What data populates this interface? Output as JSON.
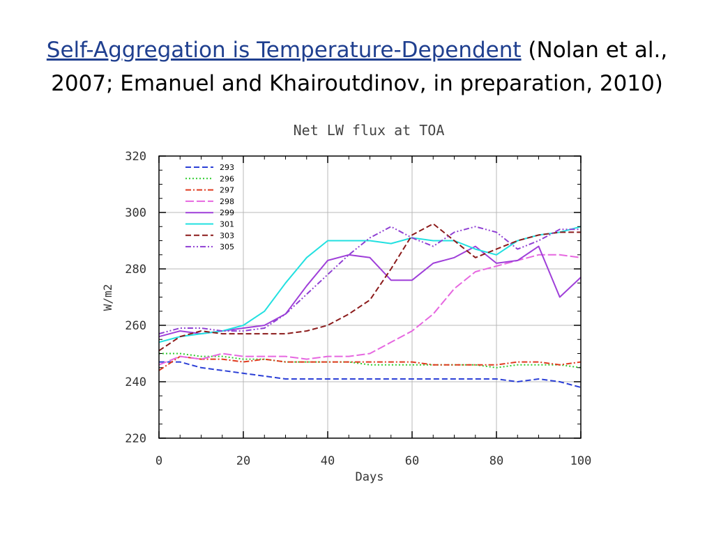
{
  "slide": {
    "title_emph": "Self-Aggregation is Temperature-Dependent",
    "title_rest": "(Nolan et al.,",
    "title_line2": "2007;  Emanuel and Khairoutdinov, in preparation, 2010)"
  },
  "chart_data": {
    "type": "line",
    "title": "Net LW flux at TOA",
    "xlabel": "Days",
    "ylabel": "W/m2",
    "xlim": [
      0,
      100
    ],
    "ylim": [
      220,
      320
    ],
    "xticks": [
      0,
      20,
      40,
      60,
      80,
      100
    ],
    "yticks": [
      220,
      240,
      260,
      280,
      300,
      320
    ],
    "grid": true,
    "legend_position": "top-left",
    "x": [
      0,
      5,
      10,
      15,
      20,
      25,
      30,
      35,
      40,
      45,
      50,
      55,
      60,
      65,
      70,
      75,
      80,
      85,
      90,
      95,
      100
    ],
    "series": [
      {
        "name": "293",
        "color": "#2b3fd6",
        "dash": "dashed",
        "values": [
          247,
          247,
          245,
          244,
          243,
          242,
          241,
          241,
          241,
          241,
          241,
          241,
          241,
          241,
          241,
          241,
          241,
          240,
          241,
          240,
          238
        ]
      },
      {
        "name": "296",
        "color": "#2ecc2e",
        "dash": "dotted",
        "values": [
          250,
          250,
          249,
          249,
          248,
          248,
          247,
          247,
          247,
          247,
          246,
          246,
          246,
          246,
          246,
          246,
          245,
          246,
          246,
          246,
          245
        ]
      },
      {
        "name": "297",
        "color": "#e03a1e",
        "dash": "dashdot",
        "values": [
          244,
          249,
          248,
          248,
          247,
          248,
          247,
          247,
          247,
          247,
          247,
          247,
          247,
          246,
          246,
          246,
          246,
          247,
          247,
          246,
          247
        ]
      },
      {
        "name": "298",
        "color": "#e667e0",
        "dash": "longdash",
        "values": [
          246,
          249,
          248,
          250,
          249,
          249,
          249,
          248,
          249,
          249,
          250,
          254,
          258,
          264,
          273,
          279,
          281,
          283,
          285,
          285,
          284
        ]
      },
      {
        "name": "299",
        "color": "#9f3fd9",
        "dash": "solid",
        "values": [
          256,
          258,
          257,
          258,
          259,
          260,
          264,
          274,
          283,
          285,
          284,
          276,
          276,
          282,
          284,
          288,
          282,
          283,
          288,
          270,
          277
        ]
      },
      {
        "name": "301",
        "color": "#22e0e0",
        "dash": "solid",
        "values": [
          254,
          256,
          257,
          258,
          260,
          265,
          275,
          284,
          290,
          290,
          290,
          289,
          291,
          290,
          290,
          287,
          285,
          290,
          292,
          293,
          295
        ]
      },
      {
        "name": "303",
        "color": "#8b1a1a",
        "dash": "dashed",
        "values": [
          251,
          256,
          258,
          257,
          257,
          257,
          257,
          258,
          260,
          264,
          269,
          280,
          292,
          296,
          290,
          284,
          287,
          290,
          292,
          293,
          293
        ]
      },
      {
        "name": "305",
        "color": "#8f3fd3",
        "dash": "dashdotdot",
        "values": [
          257,
          259,
          259,
          258,
          258,
          259,
          264,
          271,
          278,
          285,
          291,
          295,
          291,
          288,
          293,
          295,
          293,
          287,
          290,
          294,
          294
        ]
      }
    ]
  }
}
